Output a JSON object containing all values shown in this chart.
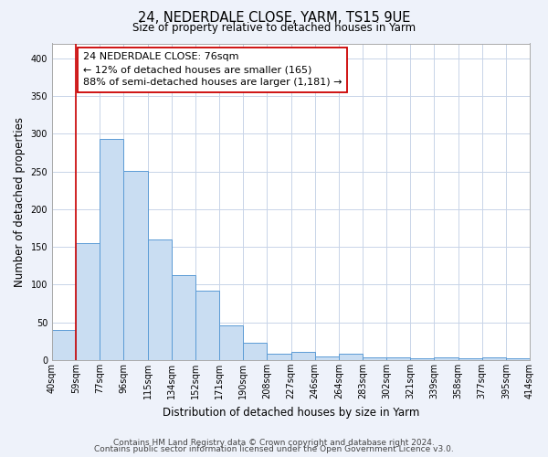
{
  "title": "24, NEDERDALE CLOSE, YARM, TS15 9UE",
  "subtitle": "Size of property relative to detached houses in Yarm",
  "xlabel": "Distribution of detached houses by size in Yarm",
  "ylabel": "Number of detached properties",
  "categories": [
    "40sqm",
    "59sqm",
    "77sqm",
    "96sqm",
    "115sqm",
    "134sqm",
    "152sqm",
    "171sqm",
    "190sqm",
    "208sqm",
    "227sqm",
    "246sqm",
    "264sqm",
    "283sqm",
    "302sqm",
    "321sqm",
    "339sqm",
    "358sqm",
    "377sqm",
    "395sqm",
    "414sqm"
  ],
  "values": [
    40,
    155,
    293,
    251,
    160,
    113,
    92,
    46,
    23,
    8,
    11,
    5,
    8,
    3,
    4,
    2,
    3,
    2,
    4,
    2
  ],
  "bar_color": "#c9ddf2",
  "bar_edge_color": "#5b9bd5",
  "vline_x": 1,
  "vline_color": "#cc0000",
  "annotation_line1": "24 NEDERDALE CLOSE: 76sqm",
  "annotation_line2": "← 12% of detached houses are smaller (165)",
  "annotation_line3": "88% of semi-detached houses are larger (1,181) →",
  "ylim": [
    0,
    420
  ],
  "yticks": [
    0,
    50,
    100,
    150,
    200,
    250,
    300,
    350,
    400
  ],
  "footer_line1": "Contains HM Land Registry data © Crown copyright and database right 2024.",
  "footer_line2": "Contains public sector information licensed under the Open Government Licence v3.0.",
  "bg_color": "#eef2fa",
  "plot_bg_color": "#ffffff",
  "title_fontsize": 10.5,
  "subtitle_fontsize": 8.5,
  "axis_label_fontsize": 8.5,
  "tick_fontsize": 7,
  "footer_fontsize": 6.5,
  "annotation_fontsize": 8
}
